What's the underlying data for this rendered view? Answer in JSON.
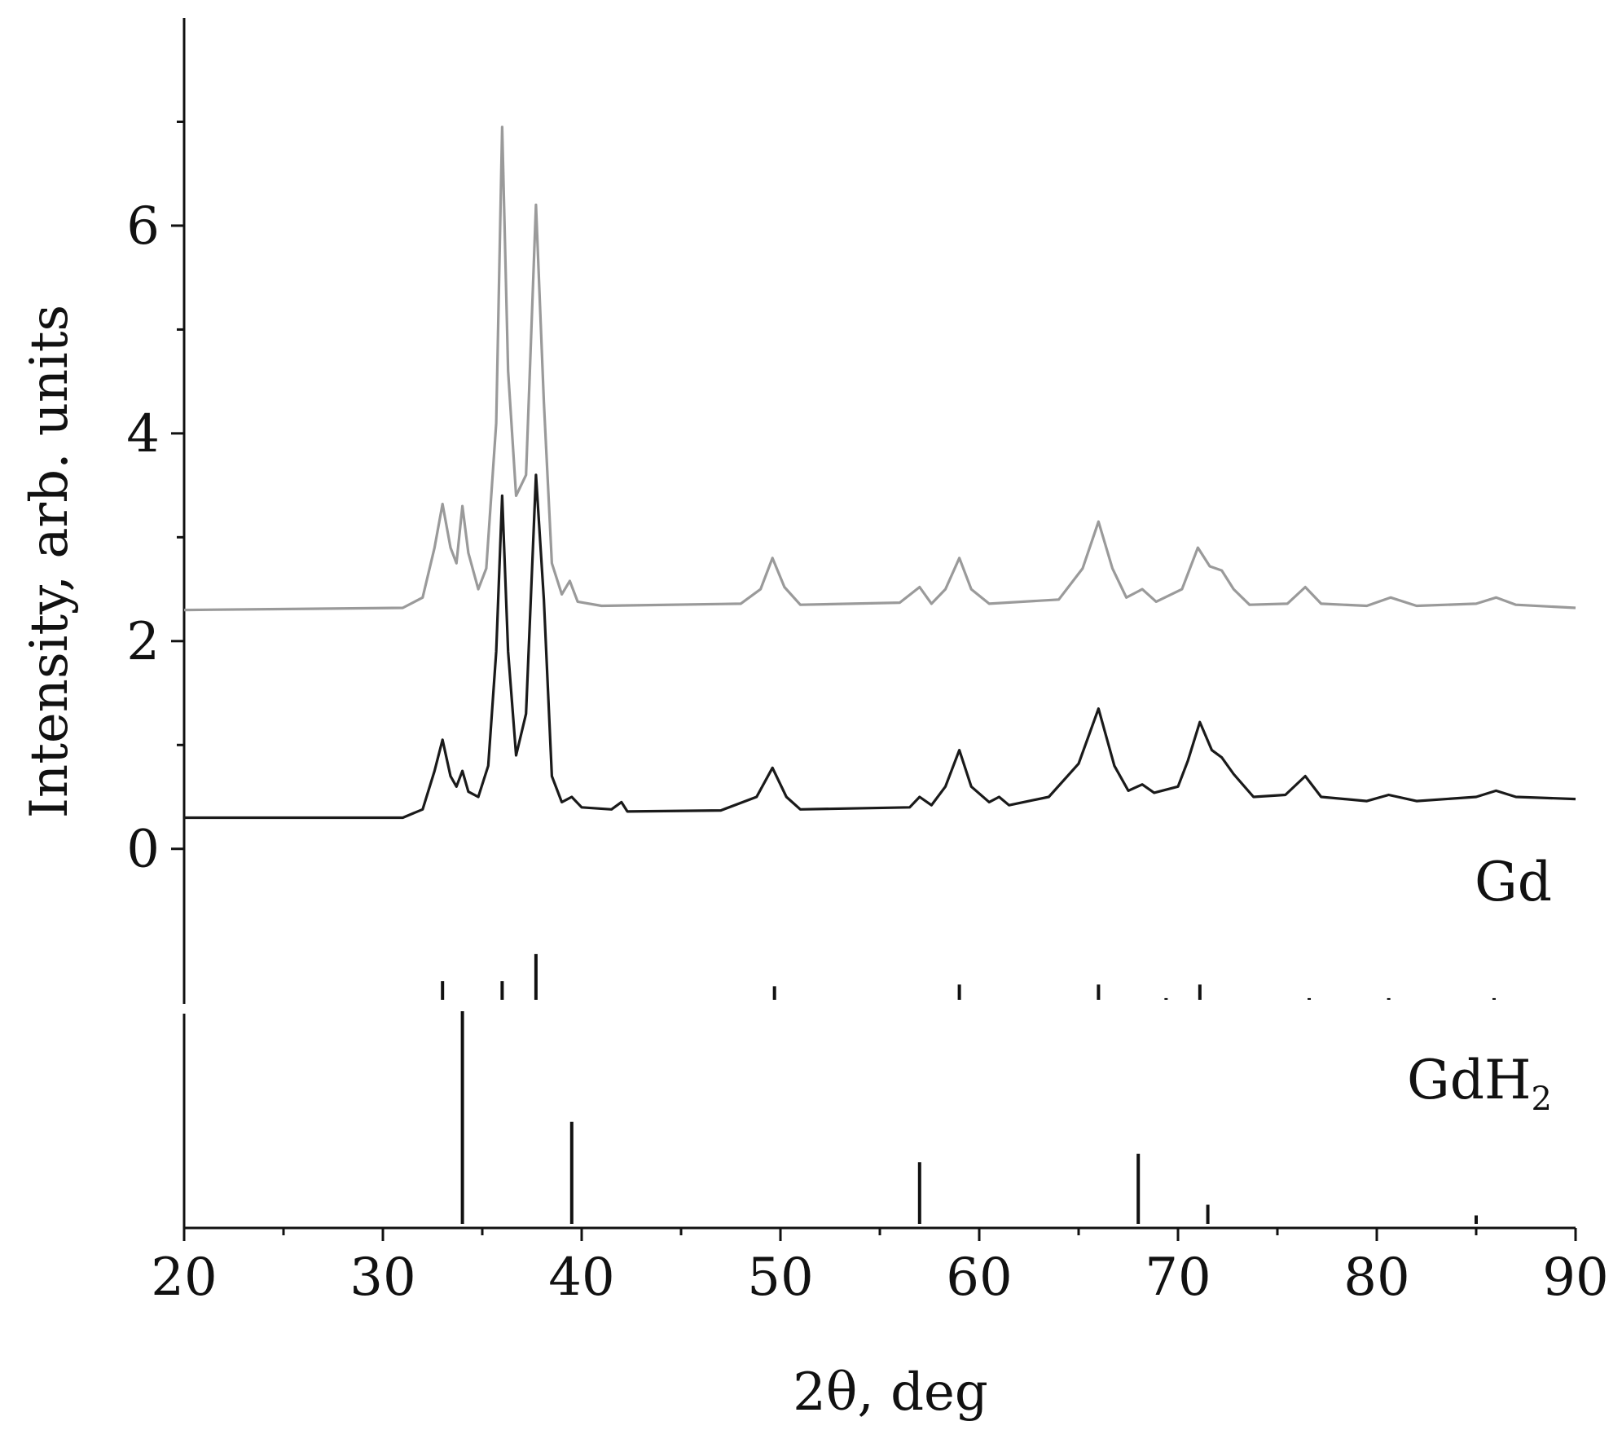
{
  "chart_data": {
    "type": "line",
    "xlabel": "2θ, deg",
    "ylabel": "Intensity, arb. units",
    "xlim": [
      20,
      90
    ],
    "ylim": [
      -3.65,
      8
    ],
    "x_ticks": [
      20,
      30,
      40,
      50,
      60,
      70,
      80,
      90
    ],
    "y_ticks": [
      0,
      2,
      4,
      6
    ],
    "grid": false,
    "series": [
      {
        "color": "#9a9a9a",
        "points": [
          [
            20,
            2.3
          ],
          [
            31,
            2.32
          ],
          [
            32,
            2.42
          ],
          [
            32.6,
            2.9
          ],
          [
            33,
            3.32
          ],
          [
            33.4,
            2.9
          ],
          [
            33.7,
            2.75
          ],
          [
            34,
            3.3
          ],
          [
            34.3,
            2.85
          ],
          [
            34.8,
            2.5
          ],
          [
            35.2,
            2.7
          ],
          [
            35.7,
            4.1
          ],
          [
            36,
            6.95
          ],
          [
            36.3,
            4.6
          ],
          [
            36.7,
            3.4
          ],
          [
            37.2,
            3.6
          ],
          [
            37.7,
            6.2
          ],
          [
            38.1,
            4.3
          ],
          [
            38.5,
            2.75
          ],
          [
            39,
            2.45
          ],
          [
            39.4,
            2.58
          ],
          [
            39.8,
            2.38
          ],
          [
            41,
            2.34
          ],
          [
            48,
            2.36
          ],
          [
            49,
            2.5
          ],
          [
            49.6,
            2.8
          ],
          [
            50.2,
            2.52
          ],
          [
            51,
            2.35
          ],
          [
            56,
            2.37
          ],
          [
            57,
            2.52
          ],
          [
            57.6,
            2.36
          ],
          [
            58.3,
            2.5
          ],
          [
            59,
            2.8
          ],
          [
            59.6,
            2.5
          ],
          [
            60.5,
            2.36
          ],
          [
            64,
            2.4
          ],
          [
            65.2,
            2.7
          ],
          [
            66,
            3.15
          ],
          [
            66.7,
            2.7
          ],
          [
            67.4,
            2.42
          ],
          [
            68.2,
            2.5
          ],
          [
            68.9,
            2.38
          ],
          [
            70.2,
            2.5
          ],
          [
            71,
            2.9
          ],
          [
            71.6,
            2.72
          ],
          [
            72.2,
            2.68
          ],
          [
            72.8,
            2.5
          ],
          [
            73.6,
            2.35
          ],
          [
            75.5,
            2.36
          ],
          [
            76.4,
            2.52
          ],
          [
            77.2,
            2.36
          ],
          [
            79.5,
            2.34
          ],
          [
            80.7,
            2.42
          ],
          [
            82,
            2.34
          ],
          [
            85,
            2.36
          ],
          [
            86,
            2.42
          ],
          [
            87,
            2.35
          ],
          [
            90,
            2.32
          ]
        ]
      },
      {
        "color": "#1a1a1a",
        "points": [
          [
            20,
            0.3
          ],
          [
            31,
            0.3
          ],
          [
            32,
            0.38
          ],
          [
            32.6,
            0.75
          ],
          [
            33,
            1.05
          ],
          [
            33.4,
            0.7
          ],
          [
            33.7,
            0.6
          ],
          [
            34,
            0.75
          ],
          [
            34.3,
            0.55
          ],
          [
            34.8,
            0.5
          ],
          [
            35.3,
            0.8
          ],
          [
            35.7,
            1.9
          ],
          [
            36,
            3.4
          ],
          [
            36.3,
            1.9
          ],
          [
            36.7,
            0.9
          ],
          [
            37.2,
            1.3
          ],
          [
            37.7,
            3.6
          ],
          [
            38.1,
            2.4
          ],
          [
            38.5,
            0.7
          ],
          [
            39,
            0.45
          ],
          [
            39.5,
            0.5
          ],
          [
            40,
            0.4
          ],
          [
            41.5,
            0.38
          ],
          [
            42,
            0.45
          ],
          [
            42.3,
            0.36
          ],
          [
            47,
            0.37
          ],
          [
            48.8,
            0.5
          ],
          [
            49.6,
            0.78
          ],
          [
            50.3,
            0.5
          ],
          [
            51,
            0.38
          ],
          [
            56.5,
            0.4
          ],
          [
            57,
            0.5
          ],
          [
            57.6,
            0.42
          ],
          [
            58.3,
            0.6
          ],
          [
            59,
            0.95
          ],
          [
            59.6,
            0.6
          ],
          [
            60.5,
            0.45
          ],
          [
            61,
            0.5
          ],
          [
            61.5,
            0.42
          ],
          [
            63.5,
            0.5
          ],
          [
            65,
            0.82
          ],
          [
            66,
            1.35
          ],
          [
            66.8,
            0.8
          ],
          [
            67.5,
            0.56
          ],
          [
            68.2,
            0.62
          ],
          [
            68.8,
            0.54
          ],
          [
            70,
            0.6
          ],
          [
            70.5,
            0.85
          ],
          [
            71.1,
            1.22
          ],
          [
            71.7,
            0.95
          ],
          [
            72.2,
            0.88
          ],
          [
            72.8,
            0.72
          ],
          [
            73.8,
            0.5
          ],
          [
            75.4,
            0.52
          ],
          [
            76.4,
            0.7
          ],
          [
            77.2,
            0.5
          ],
          [
            79.5,
            0.46
          ],
          [
            80.6,
            0.52
          ],
          [
            82,
            0.46
          ],
          [
            85,
            0.5
          ],
          [
            86,
            0.56
          ],
          [
            87,
            0.5
          ],
          [
            90,
            0.48
          ]
        ]
      }
    ],
    "reference_patterns": [
      {
        "name": "Gd",
        "lines": [
          [
            33,
            0.44
          ],
          [
            36,
            0.44
          ],
          [
            37.7,
            1.08
          ],
          [
            49.7,
            0.32
          ],
          [
            59,
            0.36
          ],
          [
            66,
            0.36
          ],
          [
            69.4,
            0.04
          ],
          [
            71.1,
            0.36
          ],
          [
            76.6,
            0.04
          ],
          [
            80.6,
            0.04
          ],
          [
            85.9,
            0.04
          ]
        ]
      },
      {
        "name": "GdH₂",
        "lines": [
          [
            34,
            1
          ],
          [
            39.5,
            0.48
          ],
          [
            57,
            0.29
          ],
          [
            68,
            0.33
          ],
          [
            71.5,
            0.09
          ],
          [
            85,
            0.04
          ]
        ]
      }
    ]
  }
}
